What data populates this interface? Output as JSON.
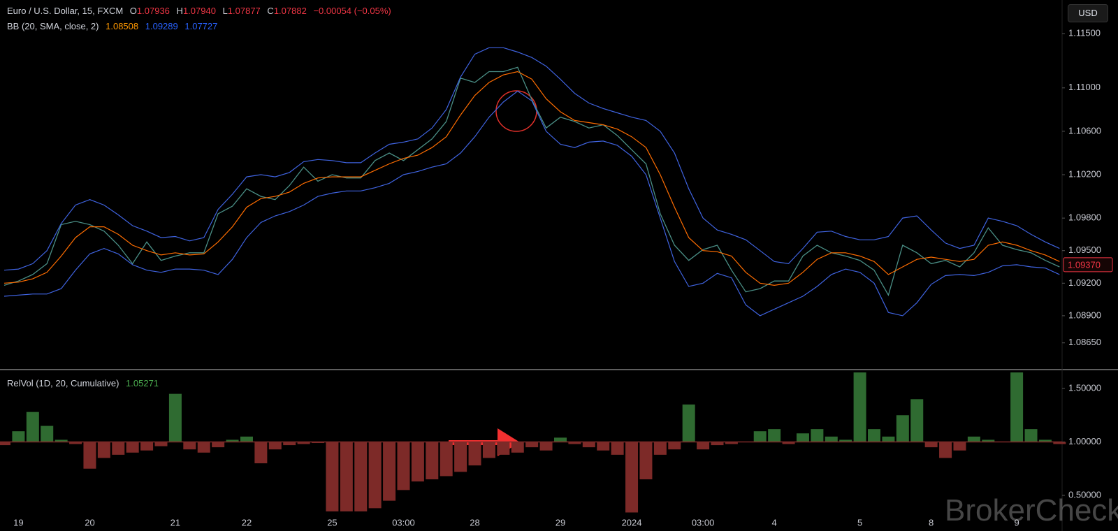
{
  "ui": {
    "symbol": "Euro / U.S. Dollar, 15, FXCM",
    "ohlc": [
      {
        "key": "O",
        "value": "1.07936"
      },
      {
        "key": "H",
        "value": "1.07940"
      },
      {
        "key": "L",
        "value": "1.07877"
      },
      {
        "key": "C",
        "value": "1.07882"
      }
    ],
    "change": "−0.00054 (−0.05%)",
    "bb_label": "BB (20, SMA, close, 2)",
    "bb_values": [
      "1.08508",
      "1.09289",
      "1.07727"
    ],
    "relvol_label": "RelVol (1D, 20, Cumulative)",
    "relvol_value": "1.05271",
    "currency": "USD",
    "watermark": "BrokerCheck"
  },
  "chart_data": [
    {
      "type": "line",
      "ylim": [
        1.0841,
        1.1181
      ],
      "yticks": [
        {
          "value": 1.115,
          "label": "1.11500"
        },
        {
          "value": 1.11,
          "label": "1.11000"
        },
        {
          "value": 1.106,
          "label": "1.10600"
        },
        {
          "value": 1.102,
          "label": "1.10200"
        },
        {
          "value": 1.098,
          "label": "1.09800"
        },
        {
          "value": 1.095,
          "label": "1.09500"
        },
        {
          "value": 1.092,
          "label": "1.09200"
        },
        {
          "value": 1.089,
          "label": "1.08900"
        },
        {
          "value": 1.0865,
          "label": "1.08650"
        }
      ],
      "last_price": {
        "value": 1.0937,
        "label": "1.09370"
      },
      "series": [
        {
          "color": "#4a8f86",
          "values": [
            1.0918,
            1.0922,
            1.0928,
            1.0938,
            1.0974,
            1.0977,
            1.0974,
            1.0968,
            1.0955,
            1.0938,
            1.0958,
            1.0941,
            1.0945,
            1.0948,
            1.0948,
            1.0984,
            1.0991,
            1.1007,
            1.1,
            1.0997,
            1.101,
            1.1027,
            1.1014,
            1.102,
            1.1017,
            1.1017,
            1.1033,
            1.104,
            1.1033,
            1.1043,
            1.1053,
            1.1069,
            1.1109,
            1.1105,
            1.1115,
            1.1115,
            1.1119,
            1.1089,
            1.1063,
            1.1073,
            1.1069,
            1.1063,
            1.1066,
            1.1056,
            1.1043,
            1.103,
            1.0984,
            1.0955,
            1.0941,
            1.0951,
            1.0955,
            1.0932,
            1.0912,
            1.0915,
            1.0922,
            1.0922,
            1.0945,
            1.0955,
            1.0948,
            1.0945,
            1.0941,
            1.0932,
            1.0909,
            1.0955,
            1.0948,
            1.0938,
            1.0941,
            1.0935,
            1.0948,
            1.0971,
            1.0955,
            1.0951,
            1.0948,
            1.0941,
            1.0935
          ]
        },
        {
          "color": "#ff6d00",
          "values": [
            1.092,
            1.0921,
            1.0924,
            1.093,
            1.0945,
            1.0962,
            1.0972,
            1.0972,
            1.0965,
            1.0955,
            1.095,
            1.0946,
            1.0948,
            1.0946,
            1.0947,
            1.0958,
            1.0972,
            1.099,
            1.0998,
            1.1,
            1.1004,
            1.1012,
            1.1017,
            1.1018,
            1.1018,
            1.1018,
            1.1024,
            1.103,
            1.1035,
            1.1038,
            1.1045,
            1.1055,
            1.1075,
            1.1093,
            1.1105,
            1.1112,
            1.1115,
            1.1108,
            1.109,
            1.1078,
            1.107,
            1.1068,
            1.1066,
            1.1062,
            1.1055,
            1.1045,
            1.102,
            1.099,
            1.0962,
            1.095,
            1.0949,
            1.0945,
            1.093,
            1.092,
            1.0918,
            1.092,
            1.093,
            1.0942,
            1.0948,
            1.0948,
            1.0945,
            1.094,
            1.0928,
            1.0935,
            1.0942,
            1.0944,
            1.0942,
            1.094,
            1.0942,
            1.0955,
            1.0958,
            1.0955,
            1.095,
            1.0946,
            1.094
          ]
        },
        {
          "color": "#3f63e0",
          "values": [
            1.0932,
            1.0933,
            1.0938,
            1.095,
            1.0975,
            1.0992,
            1.0997,
            1.0992,
            1.0983,
            1.0973,
            1.0968,
            1.0962,
            1.0963,
            1.0959,
            1.0962,
            1.0988,
            1.1002,
            1.1018,
            1.102,
            1.1018,
            1.1022,
            1.1032,
            1.1034,
            1.1033,
            1.1031,
            1.1031,
            1.104,
            1.1048,
            1.105,
            1.1053,
            1.1063,
            1.108,
            1.111,
            1.1131,
            1.1137,
            1.1137,
            1.1133,
            1.1128,
            1.112,
            1.1108,
            1.1095,
            1.1086,
            1.1081,
            1.1077,
            1.1073,
            1.107,
            1.106,
            1.104,
            1.1007,
            1.098,
            1.0969,
            1.0965,
            1.096,
            1.095,
            1.094,
            1.0938,
            1.0952,
            1.0967,
            1.0968,
            1.0963,
            1.096,
            1.096,
            1.0963,
            1.098,
            1.0982,
            1.0969,
            1.0957,
            1.0952,
            1.0955,
            1.098,
            1.0977,
            1.0973,
            1.0965,
            1.0958,
            1.0952
          ]
        },
        {
          "color": "#3f63e0",
          "values": [
            1.0908,
            1.0909,
            1.091,
            1.091,
            1.0915,
            1.0932,
            1.0947,
            1.0952,
            1.0947,
            1.0937,
            1.0932,
            1.093,
            1.0933,
            1.0933,
            1.0932,
            1.0928,
            1.0942,
            1.0962,
            1.0976,
            1.0982,
            1.0986,
            1.0992,
            1.1,
            1.1003,
            1.1005,
            1.1005,
            1.1008,
            1.1012,
            1.102,
            1.1023,
            1.1027,
            1.103,
            1.104,
            1.1055,
            1.1073,
            1.1087,
            1.1097,
            1.1088,
            1.106,
            1.1048,
            1.1045,
            1.105,
            1.1051,
            1.1047,
            1.1037,
            1.102,
            1.098,
            1.094,
            1.0917,
            1.092,
            1.0929,
            1.0925,
            1.09,
            1.089,
            1.0896,
            1.0902,
            1.0908,
            1.0917,
            1.0928,
            1.0933,
            1.093,
            1.092,
            1.0893,
            1.089,
            1.0902,
            1.0919,
            1.0927,
            1.0928,
            1.0927,
            1.093,
            1.0936,
            1.0937,
            1.0935,
            1.0934,
            1.0928
          ]
        }
      ]
    },
    {
      "type": "bar",
      "ylim": [
        0.33,
        1.67
      ],
      "yticks": [
        {
          "value": 1.5,
          "label": "1.50000"
        },
        {
          "value": 1,
          "label": "1.00000"
        },
        {
          "value": 0.5,
          "label": "0.50000"
        }
      ],
      "baseline": 1,
      "up_color": "#2f6b31",
      "down_color": "#7d2a28",
      "categories": [
        null,
        "19",
        null,
        null,
        null,
        null,
        "20",
        null,
        null,
        null,
        null,
        null,
        "21",
        null,
        null,
        null,
        null,
        "22",
        null,
        null,
        null,
        null,
        null,
        "25",
        null,
        null,
        null,
        null,
        "03:00",
        null,
        null,
        null,
        null,
        "28",
        null,
        null,
        null,
        null,
        null,
        "29",
        null,
        null,
        null,
        null,
        "2024",
        null,
        null,
        null,
        null,
        "03:00",
        null,
        null,
        null,
        null,
        "4",
        null,
        null,
        null,
        null,
        null,
        "5",
        null,
        null,
        null,
        null,
        "8",
        null,
        null,
        null,
        null,
        null,
        "9",
        null,
        null,
        null
      ],
      "values": [
        0.97,
        1.1,
        1.28,
        1.15,
        1.02,
        0.98,
        0.75,
        0.85,
        0.88,
        0.9,
        0.92,
        0.96,
        1.45,
        0.93,
        0.9,
        0.95,
        1.02,
        1.05,
        0.8,
        0.93,
        0.97,
        0.98,
        0.99,
        0.35,
        0.35,
        0.35,
        0.38,
        0.45,
        0.55,
        0.63,
        0.65,
        0.68,
        0.72,
        0.78,
        0.85,
        0.88,
        0.9,
        0.95,
        0.92,
        1.04,
        0.98,
        0.95,
        0.92,
        0.88,
        0.34,
        0.65,
        0.88,
        0.93,
        1.35,
        0.93,
        0.97,
        0.98,
        1.0,
        1.1,
        1.12,
        0.98,
        1.08,
        1.12,
        1.05,
        1.02,
        1.65,
        1.12,
        1.05,
        1.25,
        1.4,
        0.95,
        0.85,
        0.92,
        1.05,
        1.02,
        1.0,
        1.65,
        1.12,
        1.02,
        0.98
      ]
    }
  ]
}
